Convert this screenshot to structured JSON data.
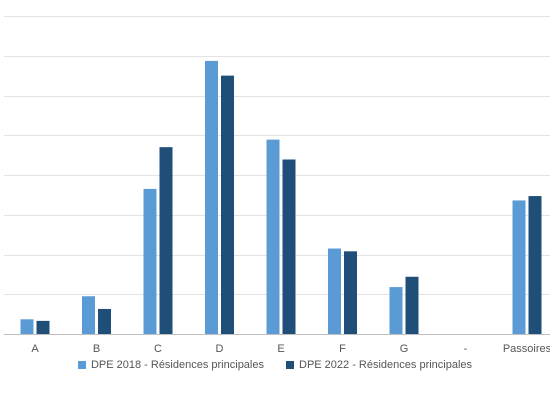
{
  "chart_data": {
    "type": "bar",
    "categories": [
      "A",
      "B",
      "C",
      "D",
      "E",
      "F",
      "G",
      "-",
      "Passoires"
    ],
    "series": [
      {
        "name": "DPE 2018 - Résidences principales",
        "color": "#5b9bd5",
        "values": [
          3.7,
          9.5,
          36.5,
          68.7,
          48.9,
          21.5,
          11.8,
          0,
          33.6
        ]
      },
      {
        "name": "DPE 2022 - Résidences principales",
        "color": "#1f4e79",
        "values": [
          3.3,
          6.3,
          47.0,
          65.0,
          43.9,
          20.8,
          14.4,
          0,
          34.7
        ]
      }
    ],
    "ylim": [
      0,
      80
    ],
    "grid": true,
    "legend_position": "bottom",
    "title": "",
    "xlabel": "",
    "ylabel": ""
  }
}
